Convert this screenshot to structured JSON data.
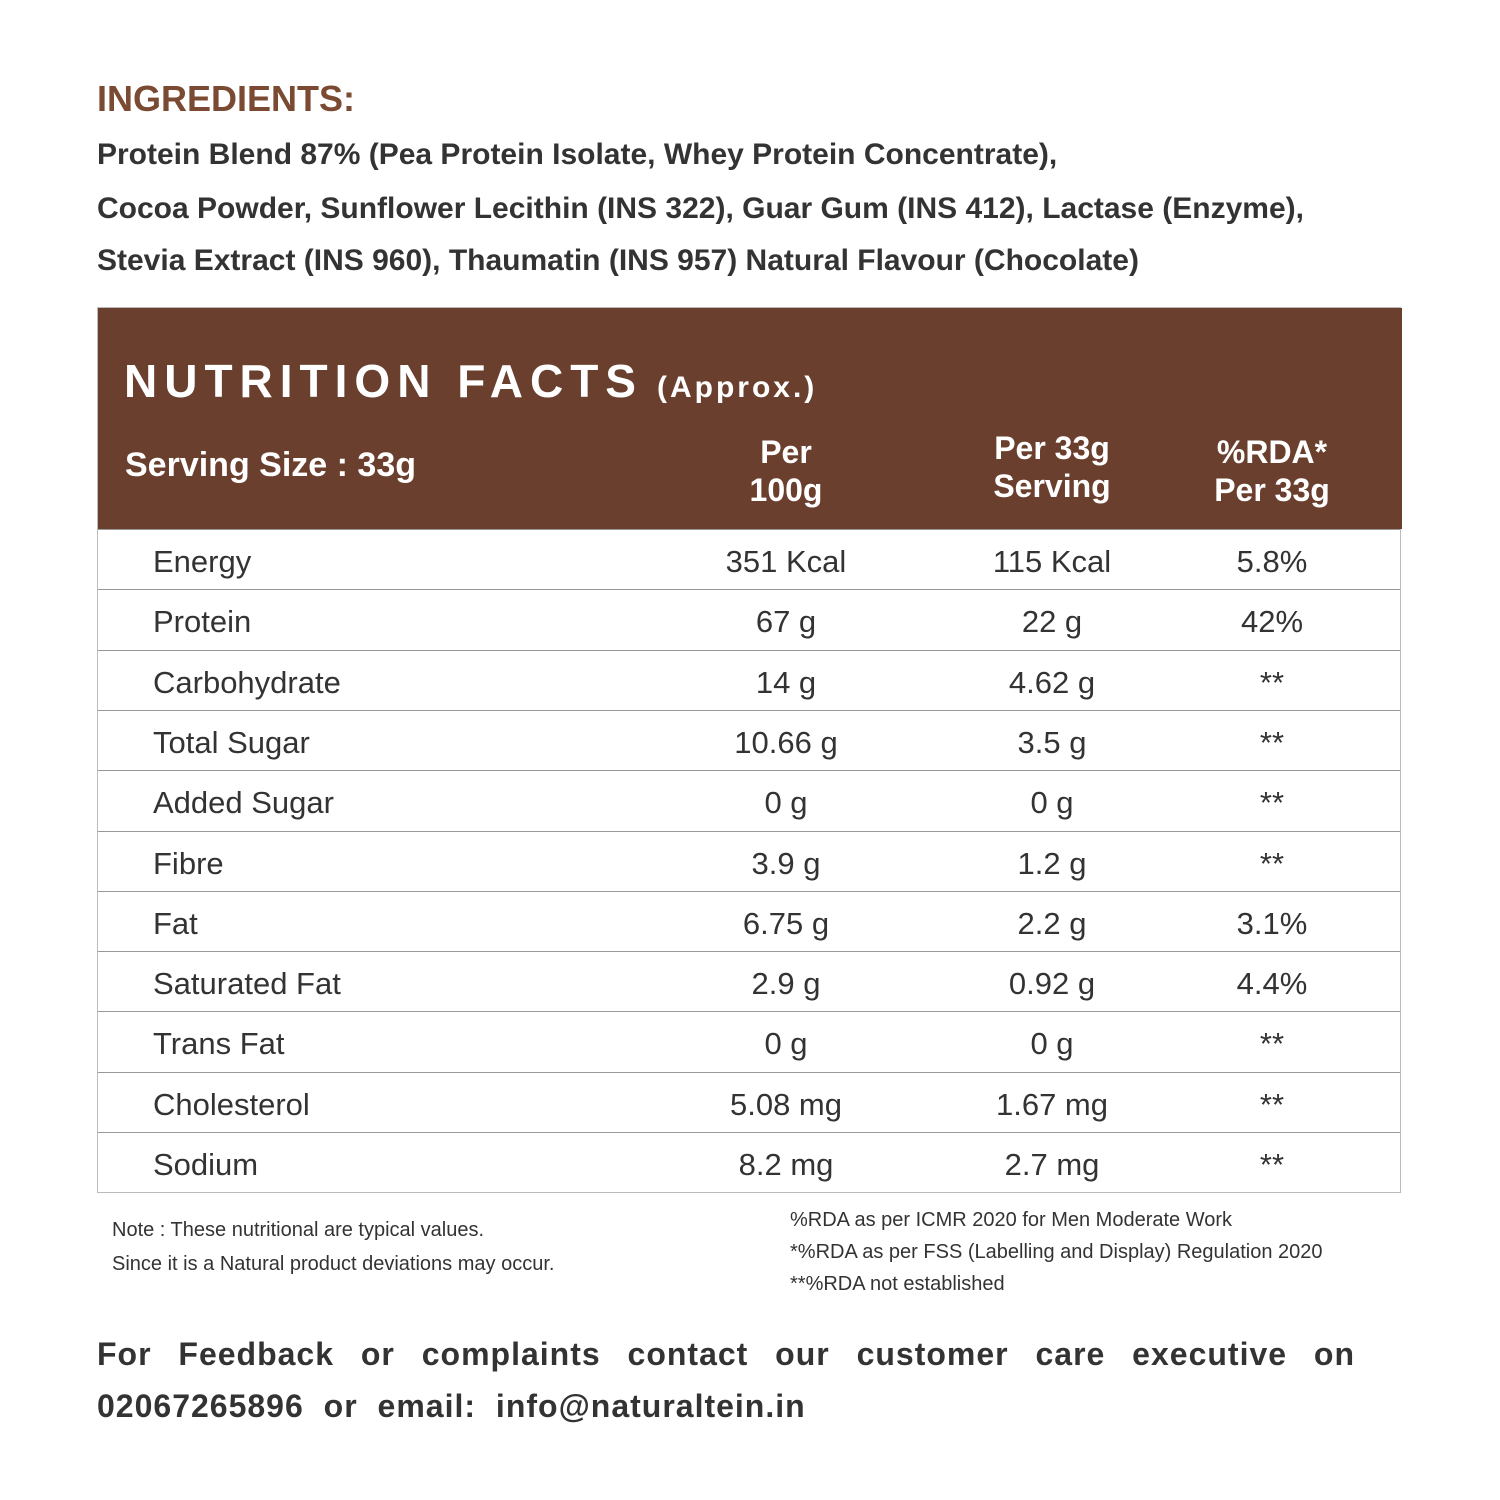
{
  "ingredients": {
    "title": "INGREDIENTS:",
    "lines": [
      "Protein Blend 87% (Pea Protein Isolate, Whey Protein Concentrate),",
      "Cocoa Powder, Sunflower Lecithin (INS 322), Guar Gum (INS 412), Lactase (Enzyme),",
      "Stevia Extract (INS 960), Thaumatin (INS 957) Natural Flavour (Chocolate)"
    ]
  },
  "nutrition": {
    "title": "NUTRITION FACTS",
    "subtitle": "(Approx.)",
    "header": [
      [
        "Serving Size : 33g"
      ],
      [
        "Per",
        "100g"
      ],
      [
        "Per 33g",
        "Serving"
      ],
      [
        "%RDA*",
        "Per 33g"
      ]
    ],
    "rows": [
      [
        "Energy",
        "351 Kcal",
        "115 Kcal",
        "5.8%"
      ],
      [
        "Protein",
        "67 g",
        "22 g",
        "42%"
      ],
      [
        "Carbohydrate",
        "14 g",
        "4.62 g",
        "**"
      ],
      [
        "Total Sugar",
        "10.66 g",
        "3.5 g",
        "**"
      ],
      [
        "Added Sugar",
        "0 g",
        "0 g",
        "**"
      ],
      [
        "Fibre",
        "3.9 g",
        "1.2 g",
        "**"
      ],
      [
        "Fat",
        "6.75 g",
        "2.2 g",
        "3.1%"
      ],
      [
        "Saturated Fat",
        "2.9 g",
        "0.92 g",
        "4.4%"
      ],
      [
        "Trans Fat",
        "0 g",
        "0 g",
        "**"
      ],
      [
        "Cholesterol",
        "5.08 mg",
        "1.67 mg",
        "**"
      ],
      [
        "Sodium",
        "8.2 mg",
        "2.7 mg",
        "**"
      ]
    ]
  },
  "notes": {
    "left": [
      "Note : These nutritional are typical values.",
      "Since it is a Natural product deviations may occur."
    ],
    "right": [
      "%RDA as per ICMR 2020 for Men Moderate Work",
      "*%RDA as per FSS (Labelling and Display) Regulation 2020",
      "**%RDA not established"
    ]
  },
  "footer": {
    "lines": [
      "For Feedback or complaints contact our customer care executive on",
      "02067265896 or email: info@naturaltein.in"
    ]
  }
}
